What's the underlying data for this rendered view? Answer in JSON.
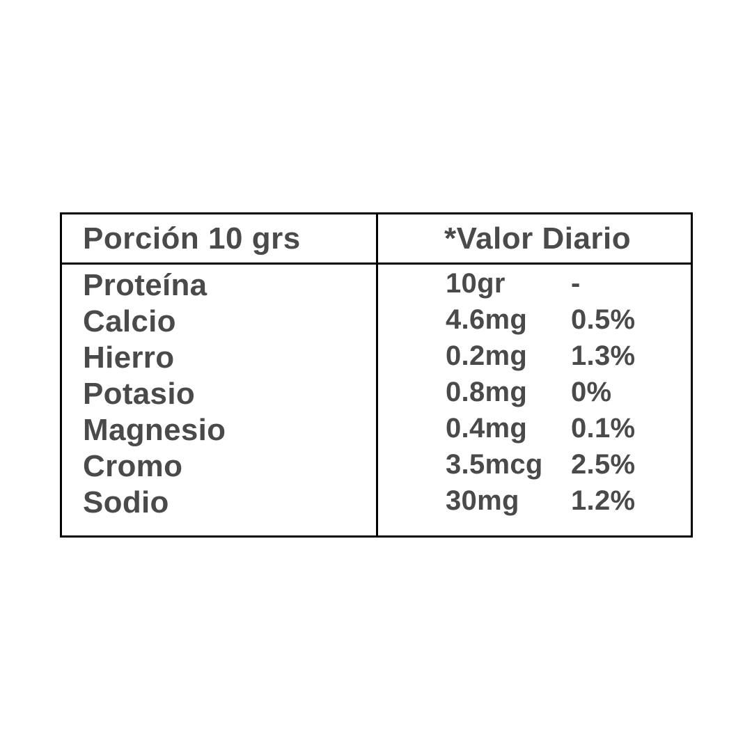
{
  "table": {
    "header": {
      "left": "Porción 10 grs",
      "right": "*Valor Diario"
    },
    "rows": [
      {
        "nutrient": "Proteína",
        "amount": "10gr",
        "daily_value": "-"
      },
      {
        "nutrient": "Calcio",
        "amount": "4.6mg",
        "daily_value": "0.5%"
      },
      {
        "nutrient": "Hierro",
        "amount": "0.2mg",
        "daily_value": "1.3%"
      },
      {
        "nutrient": "Potasio",
        "amount": "0.8mg",
        "daily_value": "0%"
      },
      {
        "nutrient": "Magnesio",
        "amount": "0.4mg",
        "daily_value": "0.1%"
      },
      {
        "nutrient": "Cromo",
        "amount": "3.5mcg",
        "daily_value": "2.5%"
      },
      {
        "nutrient": "Sodio",
        "amount": "30mg",
        "daily_value": "1.2%"
      }
    ],
    "colors": {
      "border": "#000000",
      "text": "#4a4a4a",
      "background": "#ffffff"
    }
  }
}
